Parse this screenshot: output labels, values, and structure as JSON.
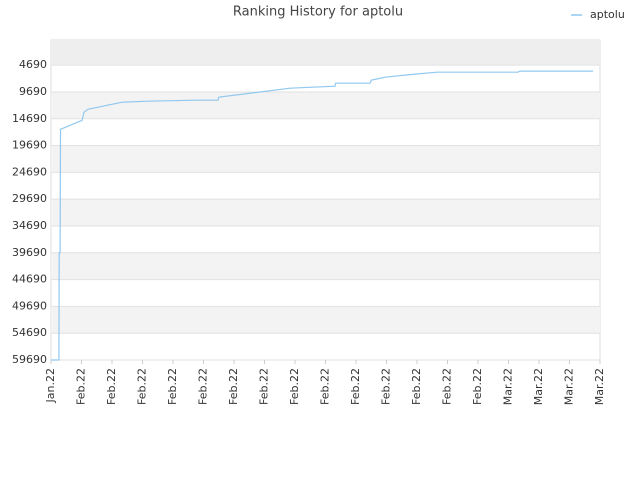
{
  "chart_data": {
    "type": "line",
    "title": "Ranking History for aptolu",
    "xlim": [
      0,
      18
    ],
    "xticks": [
      {
        "value": 0,
        "label": "Jan.22"
      },
      {
        "value": 1,
        "label": "Feb.22"
      },
      {
        "value": 2,
        "label": "Feb.22"
      },
      {
        "value": 3,
        "label": "Feb.22"
      },
      {
        "value": 4,
        "label": "Feb.22"
      },
      {
        "value": 5,
        "label": "Feb.22"
      },
      {
        "value": 6,
        "label": "Feb.22"
      },
      {
        "value": 7,
        "label": "Feb.22"
      },
      {
        "value": 8,
        "label": "Feb.22"
      },
      {
        "value": 9,
        "label": "Feb.22"
      },
      {
        "value": 10,
        "label": "Feb.22"
      },
      {
        "value": 11,
        "label": "Feb.22"
      },
      {
        "value": 12,
        "label": "Feb.22"
      },
      {
        "value": 13,
        "label": "Feb.22"
      },
      {
        "value": 14,
        "label": "Feb.22"
      },
      {
        "value": 15,
        "label": "Mar.22"
      },
      {
        "value": 16,
        "label": "Mar.22"
      },
      {
        "value": 17,
        "label": "Mar.22"
      },
      {
        "value": 18,
        "label": "Mar.22"
      }
    ],
    "ylim": [
      59690,
      0
    ],
    "yticks": [
      4690,
      9690,
      14690,
      19690,
      24690,
      29690,
      34690,
      39690,
      44690,
      49690,
      54690,
      59690
    ],
    "grid": true,
    "legend": "top-right",
    "series": [
      {
        "name": "aptolu",
        "color": "#90c8f0",
        "x": [
          0,
          0.26,
          0.27,
          0.3,
          0.31,
          1.02,
          1.08,
          1.21,
          2.33,
          3.18,
          4.72,
          5.48,
          5.5,
          7.84,
          9.31,
          9.33,
          10.46,
          10.5,
          10.95,
          11.93,
          12.66,
          15.31,
          15.38,
          17.77
        ],
        "values": [
          59690,
          59690,
          39690,
          39690,
          16650,
          14970,
          13480,
          12920,
          11610,
          11420,
          11230,
          11230,
          10670,
          8990,
          8620,
          8060,
          8060,
          7500,
          6930,
          6370,
          6000,
          6000,
          5810,
          5810
        ]
      }
    ]
  }
}
